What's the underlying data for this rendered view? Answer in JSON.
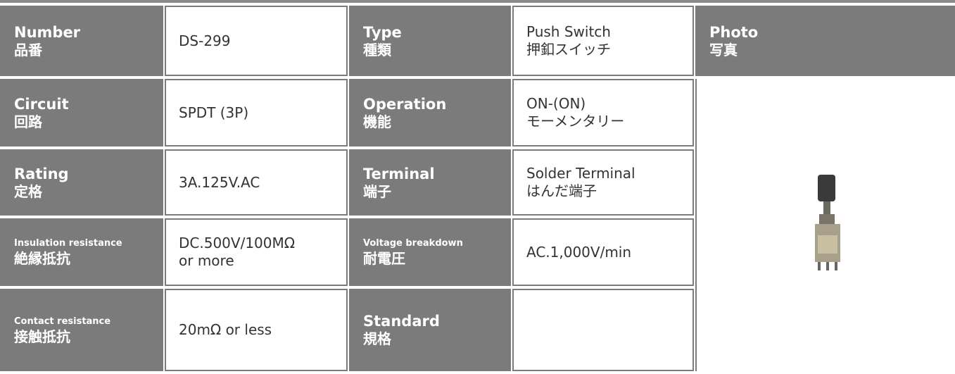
{
  "table": {
    "rows": [
      [
        {
          "label": {
            "en": "Number",
            "ja": "品番"
          },
          "value": [
            "DS-299"
          ]
        },
        {
          "label": {
            "en": "Type",
            "ja": "種類"
          },
          "value": [
            "Push Switch",
            "押釦スイッチ"
          ]
        }
      ],
      [
        {
          "label": {
            "en": "Circuit",
            "ja": "回路"
          },
          "value": [
            "SPDT (3P)"
          ]
        },
        {
          "label": {
            "en": "Operation",
            "ja": "機能"
          },
          "value": [
            "ON-(ON)",
            "モーメンタリー"
          ]
        }
      ],
      [
        {
          "label": {
            "en": "Rating",
            "ja": "定格"
          },
          "value": [
            "3A.125V.AC"
          ]
        },
        {
          "label": {
            "en": "Terminal",
            "ja": "端子"
          },
          "value": [
            "Solder Terminal",
            "はんだ端子"
          ]
        }
      ],
      [
        {
          "label": {
            "en": "Insulation resistance",
            "ja": "絶縁抵抗"
          },
          "value": [
            "DC.500V/100MΩ",
            "or more"
          ]
        },
        {
          "label": {
            "en": "Voltage breakdown",
            "ja": "耐電圧"
          },
          "value": [
            "AC.1,000V/min"
          ]
        }
      ],
      [
        {
          "label": {
            "en": "Contact resistance",
            "ja": "接触抵抗"
          },
          "value": [
            "20mΩ or less"
          ]
        },
        {
          "label": {
            "en": "Standard",
            "ja": "規格"
          }
        }
      ]
    ],
    "photo_header": {
      "en": "Photo",
      "ja": "写真"
    }
  }
}
